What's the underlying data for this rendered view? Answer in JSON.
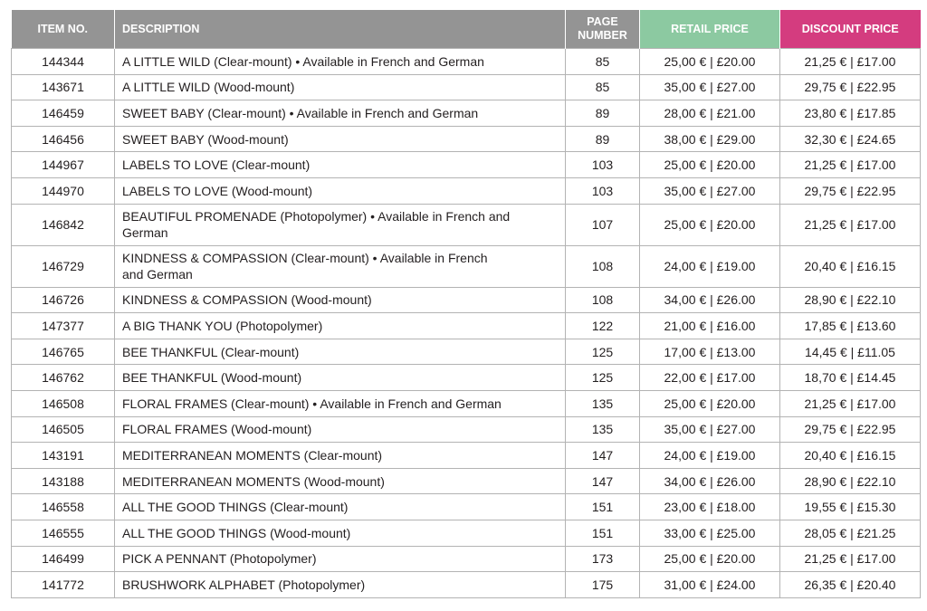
{
  "colors": {
    "header_gray": "#949494",
    "retail_header": "#8cc9a1",
    "discount_header": "#d43c7f",
    "border": "#b3b3b3",
    "text": "#231f20"
  },
  "header": {
    "item_no": "ITEM NO.",
    "description": "DESCRIPTION",
    "page_number": "PAGE NUMBER",
    "retail_price": "RETAIL PRICE",
    "discount_price": "DISCOUNT PRICE"
  },
  "rows": [
    {
      "item": "144344",
      "desc": "A LITTLE WILD (Clear-mount) • Available in French and German",
      "page": "85",
      "retail": "25,00 € | £20.00",
      "discount": "21,25 € | £17.00"
    },
    {
      "item": "143671",
      "desc": "A LITTLE WILD (Wood-mount)",
      "page": "85",
      "retail": "35,00 € | £27.00",
      "discount": "29,75 € | £22.95"
    },
    {
      "item": "146459",
      "desc": "SWEET BABY (Clear-mount) • Available in French and German",
      "page": "89",
      "retail": "28,00 € | £21.00",
      "discount": "23,80 € | £17.85"
    },
    {
      "item": "146456",
      "desc": "SWEET BABY (Wood-mount)",
      "page": "89",
      "retail": "38,00 € | £29.00",
      "discount": "32,30 € | £24.65"
    },
    {
      "item": "144967",
      "desc": "LABELS TO LOVE (Clear-mount)",
      "page": "103",
      "retail": "25,00 € | £20.00",
      "discount": "21,25 € | £17.00"
    },
    {
      "item": "144970",
      "desc": "LABELS TO LOVE (Wood-mount)",
      "page": "103",
      "retail": "35,00 € | £27.00",
      "discount": "29,75 € | £22.95"
    },
    {
      "item": "146842",
      "desc": "BEAUTIFUL PROMENADE (Photopolymer) • Available in French and German",
      "page": "107",
      "retail": "25,00 € | £20.00",
      "discount": "21,25 € | £17.00"
    },
    {
      "item": "146729",
      "desc": "KINDNESS & COMPASSION (Clear-mount) • Available in French and German",
      "page": "108",
      "retail": "24,00 € | £19.00",
      "discount": "20,40 € | £16.15"
    },
    {
      "item": "146726",
      "desc": "KINDNESS & COMPASSION (Wood-mount)",
      "page": "108",
      "retail": "34,00 € | £26.00",
      "discount": "28,90 € | £22.10"
    },
    {
      "item": "147377",
      "desc": "A BIG THANK YOU (Photopolymer)",
      "page": "122",
      "retail": "21,00 € | £16.00",
      "discount": "17,85 € | £13.60"
    },
    {
      "item": "146765",
      "desc": "BEE THANKFUL (Clear-mount)",
      "page": "125",
      "retail": "17,00 € | £13.00",
      "discount": "14,45 € | £11.05"
    },
    {
      "item": "146762",
      "desc": "BEE THANKFUL (Wood-mount)",
      "page": "125",
      "retail": "22,00 € | £17.00",
      "discount": "18,70 € | £14.45"
    },
    {
      "item": "146508",
      "desc": "FLORAL FRAMES (Clear-mount) • Available in French and German",
      "page": "135",
      "retail": "25,00 € | £20.00",
      "discount": "21,25 € | £17.00"
    },
    {
      "item": "146505",
      "desc": "FLORAL FRAMES (Wood-mount)",
      "page": "135",
      "retail": "35,00 € | £27.00",
      "discount": "29,75 € | £22.95"
    },
    {
      "item": "143191",
      "desc": "MEDITERRANEAN MOMENTS (Clear-mount)",
      "page": "147",
      "retail": "24,00 € | £19.00",
      "discount": "20,40 € | £16.15"
    },
    {
      "item": "143188",
      "desc": "MEDITERRANEAN MOMENTS (Wood-mount)",
      "page": "147",
      "retail": "34,00 € | £26.00",
      "discount": "28,90 € | £22.10"
    },
    {
      "item": "146558",
      "desc": "ALL THE GOOD THINGS (Clear-mount)",
      "page": "151",
      "retail": "23,00 € | £18.00",
      "discount": "19,55 € | £15.30"
    },
    {
      "item": "146555",
      "desc": "ALL THE GOOD THINGS (Wood-mount)",
      "page": "151",
      "retail": "33,00 € | £25.00",
      "discount": "28,05 € | £21.25"
    },
    {
      "item": "146499",
      "desc": "PICK A PENNANT (Photopolymer)",
      "page": "173",
      "retail": "25,00 € | £20.00",
      "discount": "21,25 € | £17.00"
    },
    {
      "item": "141772",
      "desc": "BRUSHWORK ALPHABET (Photopolymer)",
      "page": "175",
      "retail": "31,00 € | £24.00",
      "discount": "26,35 € | £20.40"
    }
  ]
}
